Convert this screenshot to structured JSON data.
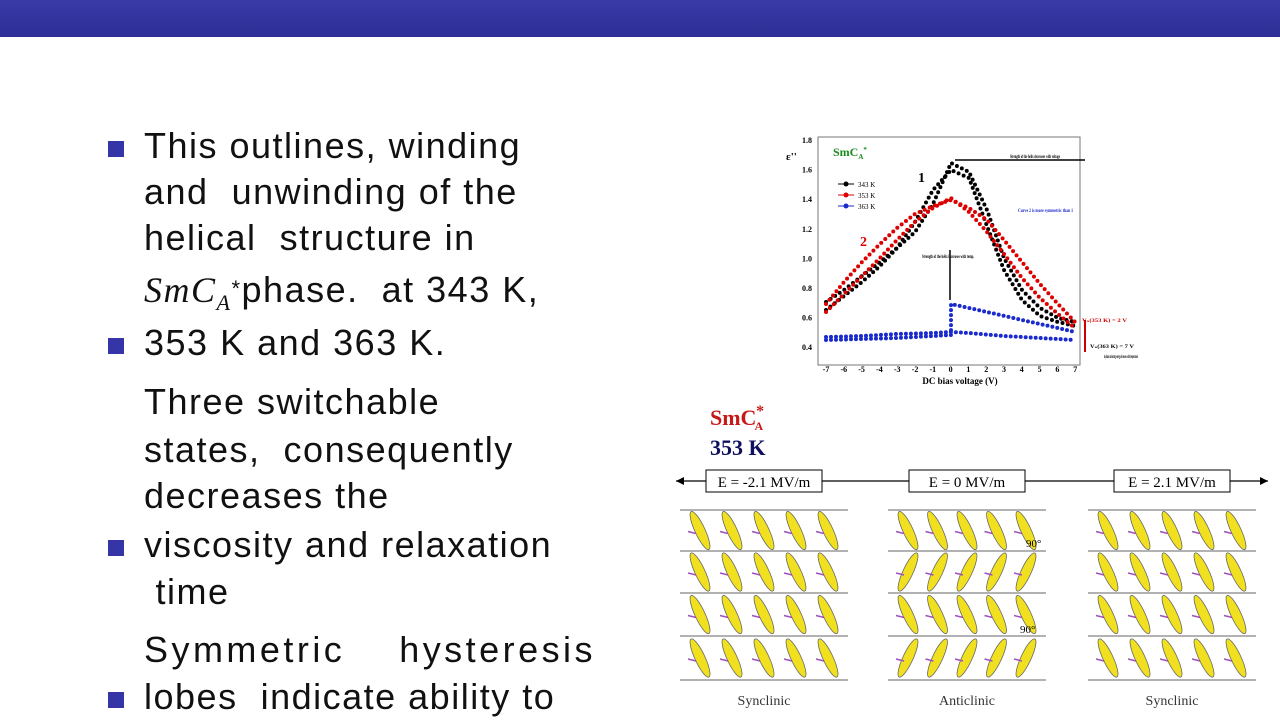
{
  "slide": {
    "text_lines": [
      "This outlines, winding",
      "and  unwinding of the",
      "helical  structure in",
      {
        "sm": "Sm",
        "c": "C",
        "sub": "A",
        "star": "*",
        "rest": "phase.  at 343 K,"
      },
      "353 K and 363 K.",
      "Three switchable",
      "states,  consequently",
      "decreases the",
      "viscosity and relaxation",
      " time",
      "Symmetric    hysteresis",
      "lobes  indicate ability to"
    ],
    "figure": {
      "phase_label": {
        "main": "SmC",
        "sub": "A",
        "sup": "*"
      },
      "y_label": "ε''",
      "x_label": "DC bias voltage (V)",
      "yticks": [
        "1.8",
        "1.6",
        "1.4",
        "1.2",
        "1.0",
        "0.8",
        "0.6",
        "0.4"
      ],
      "xticks": [
        "-7",
        "-6",
        "-5",
        "-4",
        "-3",
        "-2",
        "-1",
        "0",
        "1",
        "2",
        "3",
        "4",
        "5",
        "6",
        "7"
      ],
      "legend": [
        "343 K",
        "353 K",
        "363 K"
      ],
      "curve_labels": [
        "1",
        "2"
      ],
      "annotations": [
        "Strength of the helix decreases with voltage",
        "Curve 2 is more symmetric than 1",
        "Strength of the helix increases with temp.",
        "Vₛ(353 K) = 2 V",
        "Vₛ(363 K) = 7 V",
        "in-plane anchoring energy decreases with temperature"
      ]
    },
    "diagram": {
      "phase": {
        "main": "SmC",
        "sub": "A",
        "sup": "*"
      },
      "temperature": "353 K",
      "fields": [
        "E = -2.1 MV/m",
        "E = 0 MV/m",
        "E = 2.1 MV/m"
      ],
      "states": [
        "Synclinic",
        "Anticlinic",
        "Synclinic"
      ],
      "angles": [
        "90°",
        "90°"
      ]
    }
  }
}
